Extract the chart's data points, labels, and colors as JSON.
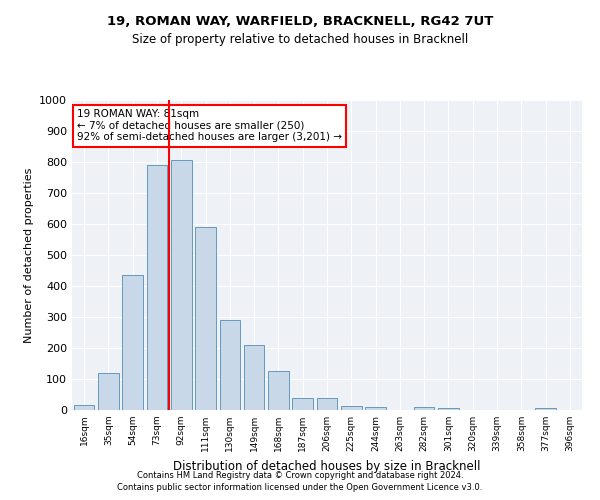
{
  "title1": "19, ROMAN WAY, WARFIELD, BRACKNELL, RG42 7UT",
  "title2": "Size of property relative to detached houses in Bracknell",
  "xlabel": "Distribution of detached houses by size in Bracknell",
  "ylabel": "Number of detached properties",
  "footnote1": "Contains HM Land Registry data © Crown copyright and database right 2024.",
  "footnote2": "Contains public sector information licensed under the Open Government Licence v3.0.",
  "annotation_title": "19 ROMAN WAY: 81sqm",
  "annotation_line1": "← 7% of detached houses are smaller (250)",
  "annotation_line2": "92% of semi-detached houses are larger (3,201) →",
  "bar_color": "#c8d8e8",
  "bar_edge_color": "#6699bb",
  "marker_color": "red",
  "annotation_box_color": "white",
  "annotation_box_edge": "red",
  "categories": [
    "16sqm",
    "35sqm",
    "54sqm",
    "73sqm",
    "92sqm",
    "111sqm",
    "130sqm",
    "149sqm",
    "168sqm",
    "187sqm",
    "206sqm",
    "225sqm",
    "244sqm",
    "263sqm",
    "282sqm",
    "301sqm",
    "320sqm",
    "339sqm",
    "358sqm",
    "377sqm",
    "396sqm"
  ],
  "values": [
    17,
    120,
    435,
    790,
    805,
    590,
    290,
    210,
    125,
    40,
    40,
    13,
    10,
    0,
    10,
    5,
    0,
    0,
    0,
    8,
    0
  ],
  "marker_bin_index": 3,
  "ylim": [
    0,
    1000
  ],
  "yticks": [
    0,
    100,
    200,
    300,
    400,
    500,
    600,
    700,
    800,
    900,
    1000
  ],
  "plot_bg_color": "#eef2f7",
  "fig_bg_color": "#ffffff",
  "grid_color": "#ffffff",
  "title1_fontsize": 9.5,
  "title2_fontsize": 8.5,
  "ylabel_fontsize": 8,
  "xlabel_fontsize": 8.5,
  "ytick_fontsize": 8,
  "xtick_fontsize": 6.5,
  "footnote_fontsize": 6,
  "annotation_fontsize": 7.5
}
